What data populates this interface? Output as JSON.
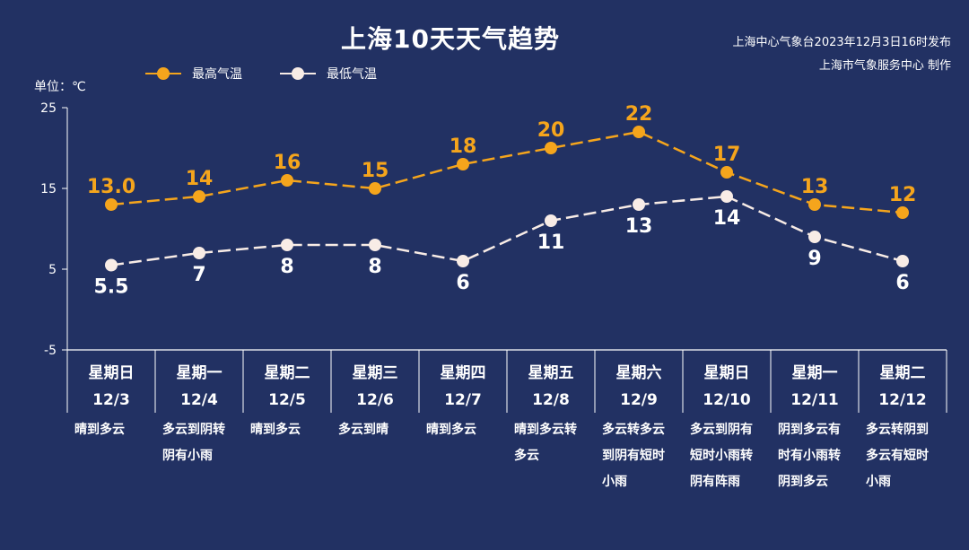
{
  "header": {
    "title": "上海10天天气趋势",
    "credit_line1": "上海中心气象台2023年12月3日16时发布",
    "credit_line2": "上海市气象服务中心 制作",
    "unit": "单位：℃"
  },
  "colors": {
    "background": "#223163",
    "high": "#f5a51c",
    "low": "#f8ece6",
    "axis": "#ffffff"
  },
  "chart_data": {
    "type": "line",
    "ylim": [
      -5,
      25
    ],
    "yticks": [
      "-5",
      "5",
      "15",
      "25"
    ],
    "categories": [
      "12/3",
      "12/4",
      "12/5",
      "12/6",
      "12/7",
      "12/8",
      "12/9",
      "12/10",
      "12/11",
      "12/12"
    ],
    "weekdays": [
      "星期日",
      "星期一",
      "星期二",
      "星期三",
      "星期四",
      "星期五",
      "星期六",
      "星期日",
      "星期一",
      "星期二"
    ],
    "weather": [
      [
        "晴到多云"
      ],
      [
        "多云到阴转",
        "阴有小雨"
      ],
      [
        "晴到多云"
      ],
      [
        "多云到晴"
      ],
      [
        "晴到多云"
      ],
      [
        "晴到多云转",
        "多云"
      ],
      [
        "多云转多云",
        "到阴有短时",
        "小雨"
      ],
      [
        "多云到阴有",
        "短时小雨转",
        "阴有阵雨"
      ],
      [
        "阴到多云有",
        "时有小雨转",
        "阴到多云"
      ],
      [
        "多云转阴到",
        "多云有短时",
        "小雨"
      ]
    ],
    "series": [
      {
        "name": "最高气温",
        "values": [
          13.0,
          14,
          16,
          15,
          18,
          20,
          22,
          17,
          13,
          12
        ],
        "labels": [
          "13.0",
          "14",
          "16",
          "15",
          "18",
          "20",
          "22",
          "17",
          "13",
          "12"
        ]
      },
      {
        "name": "最低气温",
        "values": [
          5.5,
          7,
          8,
          8,
          6,
          11,
          13,
          14,
          9,
          6
        ],
        "labels": [
          "5.5",
          "7",
          "8",
          "8",
          "6",
          "11",
          "13",
          "14",
          "9",
          "6"
        ]
      }
    ]
  }
}
